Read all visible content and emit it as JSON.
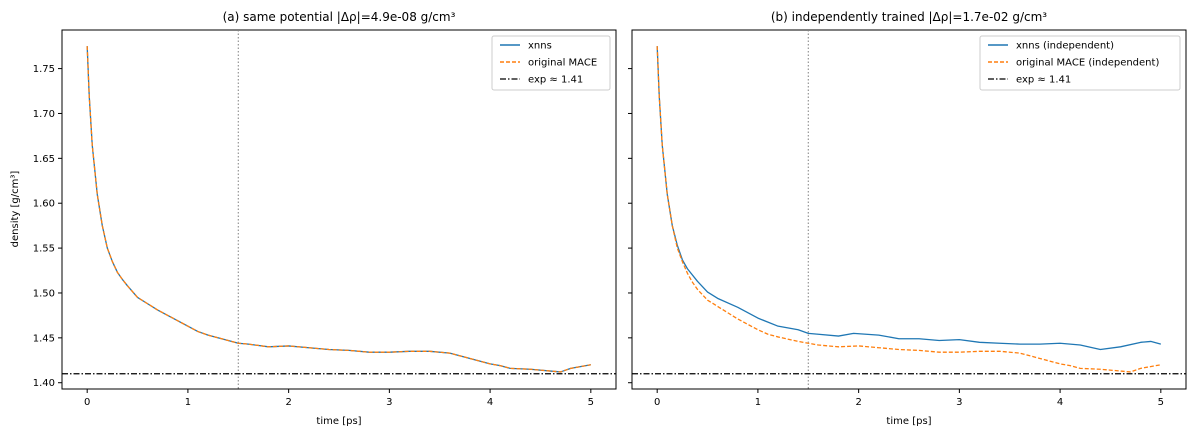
{
  "colors": {
    "series_a": "#1f77b4",
    "series_b": "#ff7f0e",
    "exp_line": "#000000",
    "vline": "#808080"
  },
  "chart_data": [
    {
      "type": "line",
      "title": "(a) same potential  |Δρ|=4.9e-08 g/cm³",
      "xlabel": "time [ps]",
      "ylabel": "density [g/cm³]",
      "xlim": [
        -0.25,
        5.25
      ],
      "ylim": [
        1.393,
        1.793
      ],
      "xticks": [
        0,
        1,
        2,
        3,
        4,
        5
      ],
      "xtick_labels": [
        "0",
        "1",
        "2",
        "3",
        "4",
        "5"
      ],
      "yticks": [
        1.4,
        1.45,
        1.5,
        1.55,
        1.6,
        1.65,
        1.7,
        1.75
      ],
      "ytick_labels": [
        "1.40",
        "1.45",
        "1.50",
        "1.55",
        "1.60",
        "1.65",
        "1.70",
        "1.75"
      ],
      "show_ytick_labels": true,
      "legend_position": "top-right",
      "vline_x": 1.5,
      "hline": {
        "label": "exp ≈ 1.41",
        "y": 1.41
      },
      "series": [
        {
          "name": "xnns",
          "style": "solid",
          "x": [
            0,
            0.02,
            0.05,
            0.1,
            0.15,
            0.2,
            0.25,
            0.3,
            0.35,
            0.4,
            0.5,
            0.6,
            0.7,
            0.8,
            1.0,
            1.1,
            1.2,
            1.4,
            1.5,
            1.6,
            1.8,
            2.0,
            2.2,
            2.4,
            2.6,
            2.8,
            3.0,
            3.2,
            3.4,
            3.6,
            3.8,
            4.0,
            4.1,
            4.2,
            4.4,
            4.6,
            4.7,
            4.8,
            5.0
          ],
          "y": [
            1.775,
            1.72,
            1.665,
            1.61,
            1.575,
            1.55,
            1.535,
            1.523,
            1.515,
            1.508,
            1.495,
            1.488,
            1.481,
            1.475,
            1.463,
            1.457,
            1.453,
            1.447,
            1.444,
            1.443,
            1.44,
            1.441,
            1.439,
            1.437,
            1.436,
            1.434,
            1.434,
            1.435,
            1.435,
            1.433,
            1.427,
            1.421,
            1.419,
            1.416,
            1.415,
            1.413,
            1.412,
            1.416,
            1.42
          ]
        },
        {
          "name": "original MACE",
          "style": "dashed",
          "x": [
            0,
            0.02,
            0.05,
            0.1,
            0.15,
            0.2,
            0.25,
            0.3,
            0.35,
            0.4,
            0.5,
            0.6,
            0.7,
            0.8,
            1.0,
            1.1,
            1.2,
            1.4,
            1.5,
            1.6,
            1.8,
            2.0,
            2.2,
            2.4,
            2.6,
            2.8,
            3.0,
            3.2,
            3.4,
            3.6,
            3.8,
            4.0,
            4.1,
            4.2,
            4.4,
            4.6,
            4.7,
            4.8,
            5.0
          ],
          "y": [
            1.775,
            1.72,
            1.665,
            1.61,
            1.575,
            1.55,
            1.535,
            1.523,
            1.515,
            1.508,
            1.495,
            1.488,
            1.481,
            1.475,
            1.463,
            1.457,
            1.453,
            1.447,
            1.444,
            1.443,
            1.44,
            1.441,
            1.439,
            1.437,
            1.436,
            1.434,
            1.434,
            1.435,
            1.435,
            1.433,
            1.427,
            1.421,
            1.419,
            1.416,
            1.415,
            1.413,
            1.412,
            1.416,
            1.42
          ]
        }
      ]
    },
    {
      "type": "line",
      "title": "(b) independently trained  |Δρ|=1.7e-02 g/cm³",
      "xlabel": "time [ps]",
      "ylabel": "",
      "xlim": [
        -0.25,
        5.25
      ],
      "ylim": [
        1.393,
        1.793
      ],
      "xticks": [
        0,
        1,
        2,
        3,
        4,
        5
      ],
      "xtick_labels": [
        "0",
        "1",
        "2",
        "3",
        "4",
        "5"
      ],
      "yticks": [
        1.4,
        1.45,
        1.5,
        1.55,
        1.6,
        1.65,
        1.7,
        1.75
      ],
      "ytick_labels": [],
      "show_ytick_labels": false,
      "legend_position": "top-right",
      "vline_x": 1.5,
      "hline": {
        "label": "exp ≈ 1.41",
        "y": 1.41
      },
      "series": [
        {
          "name": "xnns (independent)",
          "style": "solid",
          "x": [
            0,
            0.02,
            0.05,
            0.1,
            0.15,
            0.2,
            0.25,
            0.3,
            0.4,
            0.5,
            0.6,
            0.8,
            1.0,
            1.2,
            1.4,
            1.5,
            1.6,
            1.8,
            1.95,
            2.2,
            2.4,
            2.6,
            2.8,
            3.0,
            3.2,
            3.4,
            3.6,
            3.8,
            4.0,
            4.2,
            4.4,
            4.6,
            4.8,
            4.9,
            5.0
          ],
          "y": [
            1.775,
            1.72,
            1.665,
            1.61,
            1.575,
            1.553,
            1.537,
            1.527,
            1.513,
            1.501,
            1.494,
            1.484,
            1.472,
            1.463,
            1.459,
            1.455,
            1.454,
            1.452,
            1.455,
            1.453,
            1.449,
            1.449,
            1.447,
            1.448,
            1.445,
            1.444,
            1.443,
            1.443,
            1.444,
            1.442,
            1.437,
            1.44,
            1.445,
            1.446,
            1.443
          ]
        },
        {
          "name": "original MACE (independent)",
          "style": "dashed",
          "x": [
            0,
            0.02,
            0.05,
            0.1,
            0.15,
            0.2,
            0.25,
            0.3,
            0.35,
            0.4,
            0.5,
            0.6,
            0.7,
            0.8,
            1.0,
            1.1,
            1.2,
            1.4,
            1.5,
            1.6,
            1.8,
            2.0,
            2.2,
            2.4,
            2.6,
            2.8,
            3.0,
            3.2,
            3.4,
            3.6,
            3.8,
            4.0,
            4.1,
            4.2,
            4.4,
            4.6,
            4.7,
            4.8,
            5.0
          ],
          "y": [
            1.775,
            1.72,
            1.665,
            1.61,
            1.575,
            1.55,
            1.535,
            1.522,
            1.512,
            1.504,
            1.492,
            1.485,
            1.478,
            1.471,
            1.459,
            1.454,
            1.451,
            1.446,
            1.444,
            1.442,
            1.44,
            1.441,
            1.439,
            1.437,
            1.436,
            1.434,
            1.434,
            1.435,
            1.435,
            1.433,
            1.427,
            1.421,
            1.419,
            1.416,
            1.415,
            1.413,
            1.412,
            1.416,
            1.42
          ]
        }
      ]
    }
  ]
}
